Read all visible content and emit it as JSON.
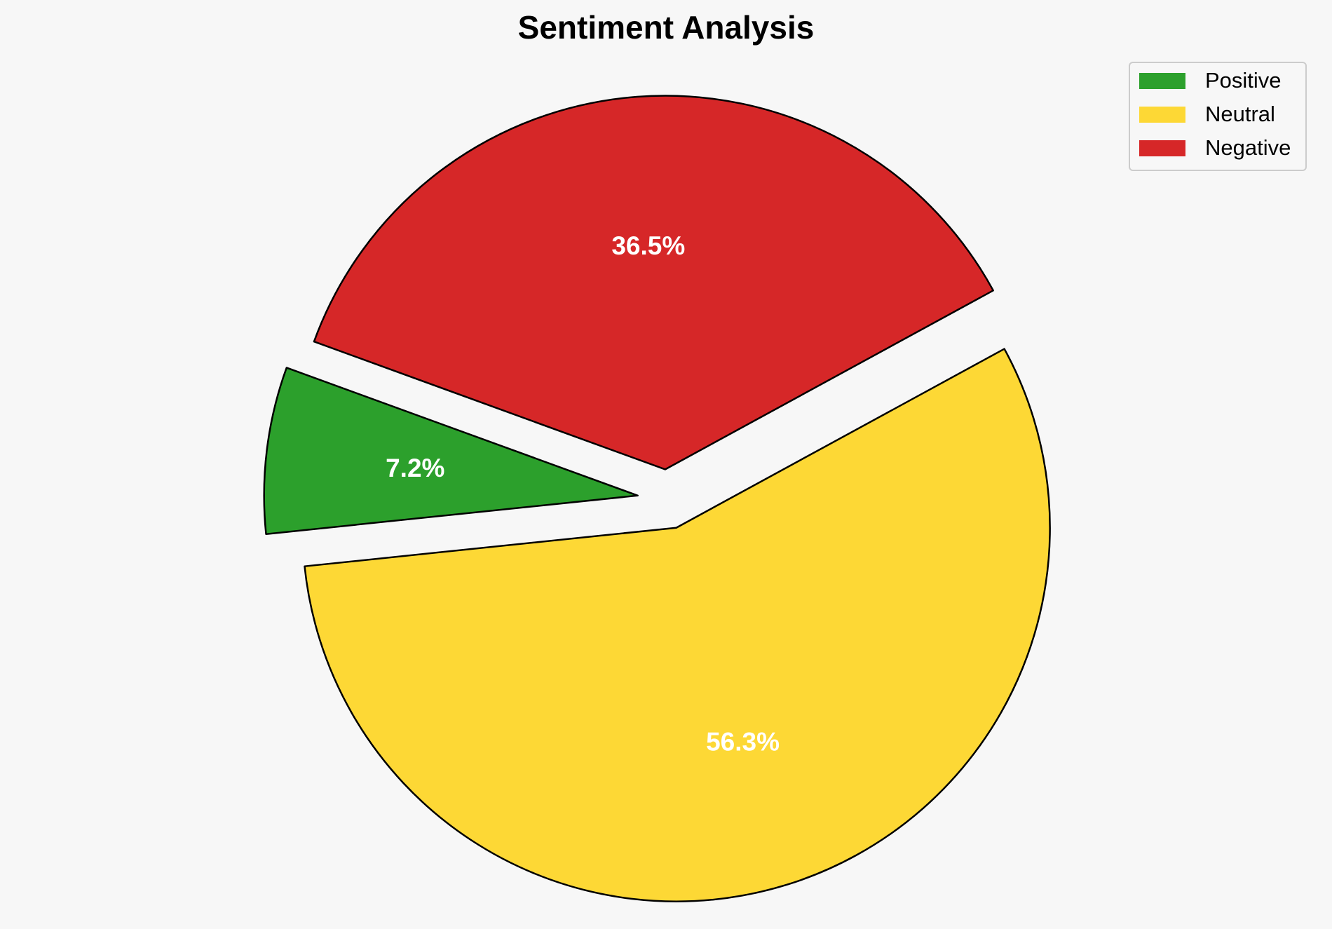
{
  "chart_data": {
    "type": "pie",
    "title": "Sentiment Analysis",
    "slices": [
      {
        "label": "Positive",
        "value": 7.2,
        "display": "7.2%",
        "color": "#2ca02c",
        "exploded": true
      },
      {
        "label": "Neutral",
        "value": 56.3,
        "display": "56.3%",
        "color": "#fdd835",
        "exploded": true
      },
      {
        "label": "Negative",
        "value": 36.5,
        "display": "36.5%",
        "color": "#d62728",
        "exploded": true
      }
    ],
    "legend": {
      "placement": "top-right",
      "entries": [
        "Positive",
        "Neutral",
        "Negative"
      ]
    },
    "edge_color": "#000000",
    "background": "#f7f7f7"
  }
}
